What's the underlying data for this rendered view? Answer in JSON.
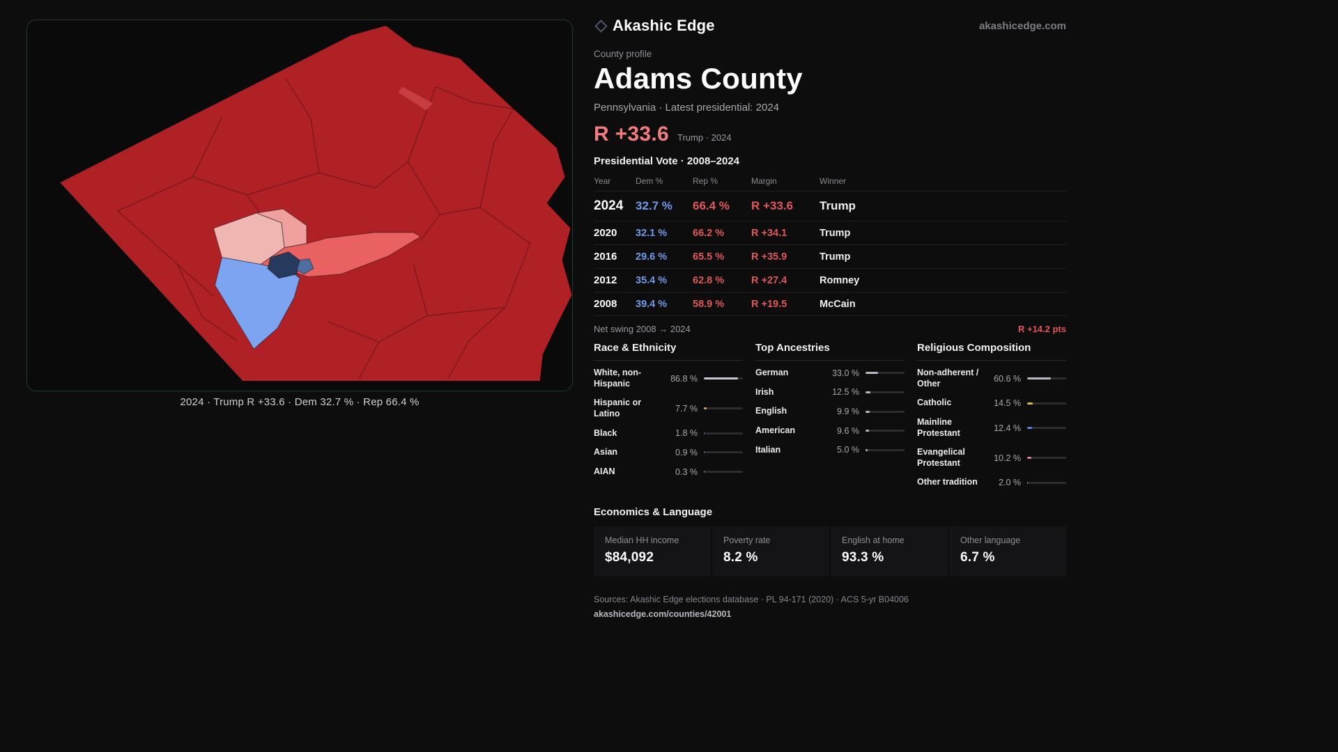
{
  "brand": {
    "name": "Akashic Edge",
    "domain": "akashicedge.com"
  },
  "profile": {
    "kicker": "County profile",
    "title": "Adams County",
    "subtitle": "Pennsylvania · Latest presidential: 2024",
    "headline_margin": "R +33.6",
    "headline_note": "Trump · 2024"
  },
  "map": {
    "caption": "2024 · Trump R +33.6 · Dem 32.7 % · Rep 66.4 %",
    "colors": {
      "rep_strong": "#b02126",
      "streak": "#c63e41",
      "rep_pale": "#efb6b2",
      "rep_light": "#f0a19d",
      "rep_mid": "#e96160",
      "dem_light": "#7ca4f1",
      "dem_dark": "#253a5d",
      "dem_mid": "#4f6da1"
    }
  },
  "vote_table": {
    "title": "Presidential Vote · 2008–2024",
    "columns": [
      "Year",
      "Dem %",
      "Rep %",
      "Margin",
      "Winner"
    ],
    "rows": [
      {
        "year": "2024",
        "dem": "32.7 %",
        "rep": "66.4 %",
        "margin": "R +33.6",
        "winner": "Trump"
      },
      {
        "year": "2020",
        "dem": "32.1 %",
        "rep": "66.2 %",
        "margin": "R +34.1",
        "winner": "Trump"
      },
      {
        "year": "2016",
        "dem": "29.6 %",
        "rep": "65.5 %",
        "margin": "R +35.9",
        "winner": "Trump"
      },
      {
        "year": "2012",
        "dem": "35.4 %",
        "rep": "62.8 %",
        "margin": "R +27.4",
        "winner": "Romney"
      },
      {
        "year": "2008",
        "dem": "39.4 %",
        "rep": "58.9 %",
        "margin": "R +19.5",
        "winner": "McCain"
      }
    ],
    "net_swing_label": "Net swing 2008 → 2024",
    "net_swing_value": "R +14.2 pts"
  },
  "demographics": {
    "race": {
      "title": "Race & Ethnicity",
      "rows": [
        {
          "label": "White, non-Hispanic",
          "value": "86.8 %",
          "pct": 86.8,
          "color": "#c7cbd3"
        },
        {
          "label": "Hispanic or Latino",
          "value": "7.7 %",
          "pct": 7.7,
          "color": "#e5a83c"
        },
        {
          "label": "Black",
          "value": "1.8 %",
          "pct": 1.8,
          "color": "#5b87e0"
        },
        {
          "label": "Asian",
          "value": "0.9 %",
          "pct": 0.9,
          "color": "#6f86d8"
        },
        {
          "label": "AIAN",
          "value": "0.3 %",
          "pct": 0.3,
          "color": "#cf8a4e"
        }
      ]
    },
    "ancestries": {
      "title": "Top Ancestries",
      "rows": [
        {
          "label": "German",
          "value": "33.0 %",
          "pct": 33.0,
          "color": "#b6bac2"
        },
        {
          "label": "Irish",
          "value": "12.5 %",
          "pct": 12.5,
          "color": "#b6bac2"
        },
        {
          "label": "English",
          "value": "9.9 %",
          "pct": 9.9,
          "color": "#b6bac2"
        },
        {
          "label": "American",
          "value": "9.6 %",
          "pct": 9.6,
          "color": "#b6bac2"
        },
        {
          "label": "Italian",
          "value": "5.0 %",
          "pct": 5.0,
          "color": "#b6bac2"
        }
      ]
    },
    "religion": {
      "title": "Religious Composition",
      "rows": [
        {
          "label": "Non-adherent / Other",
          "value": "60.6 %",
          "pct": 60.6,
          "color": "#b6bac2"
        },
        {
          "label": "Catholic",
          "value": "14.5 %",
          "pct": 14.5,
          "color": "#ddb93f"
        },
        {
          "label": "Mainline Protestant",
          "value": "12.4 %",
          "pct": 12.4,
          "color": "#5b87e0"
        },
        {
          "label": "Evangelical Protestant",
          "value": "10.2 %",
          "pct": 10.2,
          "color": "#e87d93"
        },
        {
          "label": "Other tradition",
          "value": "2.0 %",
          "pct": 2.0,
          "color": "#b6bac2"
        }
      ]
    }
  },
  "economics": {
    "title": "Economics & Language",
    "stats": [
      {
        "label": "Median HH income",
        "value": "$84,092"
      },
      {
        "label": "Poverty rate",
        "value": "8.2 %"
      },
      {
        "label": "English at home",
        "value": "93.3 %"
      },
      {
        "label": "Other language",
        "value": "6.7 %"
      }
    ]
  },
  "footer": {
    "sources": "Sources: Akashic Edge elections database · PL 94-171 (2020) · ACS 5-yr B04006",
    "permalink": "akashicedge.com/counties/42001"
  }
}
